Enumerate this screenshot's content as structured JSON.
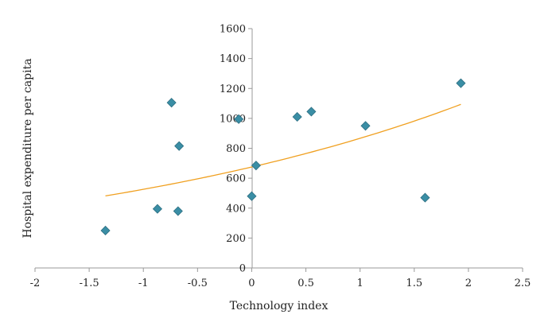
{
  "chart_data": {
    "type": "scatter",
    "xlabel": "Technology index",
    "ylabel": "Hospital expenditure per capita",
    "xlim": [
      -2,
      2.5
    ],
    "ylim": [
      0,
      1600
    ],
    "xticks": [
      -2,
      -1.5,
      -1,
      -0.5,
      0,
      0.5,
      1,
      1.5,
      2,
      2.5
    ],
    "xtick_labels": [
      "-2",
      "-1.5",
      "-1",
      "-0.5",
      "0",
      "0.5",
      "1",
      "1.5",
      "2",
      "2.5"
    ],
    "yticks": [
      0,
      200,
      400,
      600,
      800,
      1000,
      1200,
      1400,
      1600
    ],
    "ytick_labels": [
      "0",
      "200",
      "400",
      "600",
      "800",
      "1000",
      "1200",
      "1400",
      "1600"
    ],
    "grid": false,
    "series": [
      {
        "marker": "diamond",
        "color": "#3a8ea5",
        "points": [
          {
            "x": -1.35,
            "y": 250
          },
          {
            "x": -0.87,
            "y": 395
          },
          {
            "x": -0.74,
            "y": 1105
          },
          {
            "x": -0.68,
            "y": 380
          },
          {
            "x": -0.67,
            "y": 815
          },
          {
            "x": -0.12,
            "y": 995
          },
          {
            "x": 0.0,
            "y": 480
          },
          {
            "x": 0.04,
            "y": 685
          },
          {
            "x": 0.42,
            "y": 1010
          },
          {
            "x": 0.55,
            "y": 1045
          },
          {
            "x": 1.05,
            "y": 950
          },
          {
            "x": 1.6,
            "y": 470
          },
          {
            "x": 1.93,
            "y": 1235
          }
        ]
      }
    ],
    "trendline": {
      "type": "exponential",
      "color": "#f0a020",
      "x_range": [
        -1.35,
        1.93
      ],
      "a": 675,
      "b": 0.25
    },
    "colors": {
      "axis": "#999999",
      "marker_stroke": "#2e6f82"
    }
  }
}
